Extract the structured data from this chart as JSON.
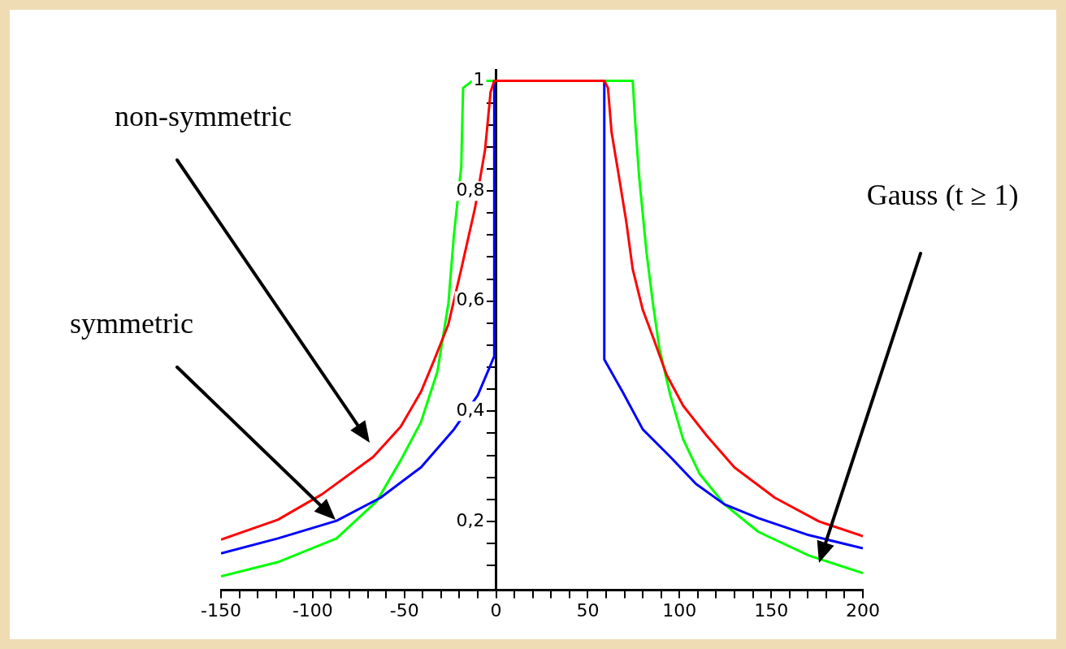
{
  "chart_data": {
    "type": "line",
    "xlim": [
      -150,
      200
    ],
    "ylim": [
      0.075,
      1.02
    ],
    "xticks": [
      -150,
      {
        "value": -140,
        "label": null
      },
      {
        "value": -130,
        "label": null
      },
      {
        "value": -120,
        "label": null
      },
      {
        "value": -110,
        "label": null
      },
      -100,
      {
        "value": -90,
        "label": null
      },
      {
        "value": -80,
        "label": null
      },
      {
        "value": -70,
        "label": null
      },
      {
        "value": -60,
        "label": null
      },
      -50,
      {
        "value": -40,
        "label": null
      },
      {
        "value": -30,
        "label": null
      },
      {
        "value": -20,
        "label": null
      },
      {
        "value": -10,
        "label": null
      },
      0,
      {
        "value": 10,
        "label": null
      },
      {
        "value": 20,
        "label": null
      },
      {
        "value": 30,
        "label": null
      },
      {
        "value": 40,
        "label": null
      },
      50,
      {
        "value": 60,
        "label": null
      },
      {
        "value": 70,
        "label": null
      },
      {
        "value": 80,
        "label": null
      },
      {
        "value": 90,
        "label": null
      },
      100,
      {
        "value": 110,
        "label": null
      },
      {
        "value": 120,
        "label": null
      },
      {
        "value": 130,
        "label": null
      },
      {
        "value": 140,
        "label": null
      },
      150,
      {
        "value": 160,
        "label": null
      },
      {
        "value": 170,
        "label": null
      },
      {
        "value": 180,
        "label": null
      },
      {
        "value": 190,
        "label": null
      },
      200
    ],
    "yticks": [
      {
        "value": 0.12,
        "label": null
      },
      {
        "value": 0.16,
        "label": null
      },
      {
        "value": 0.2,
        "label": "0,2"
      },
      {
        "value": 0.24,
        "label": null
      },
      {
        "value": 0.28,
        "label": null
      },
      {
        "value": 0.32,
        "label": null
      },
      {
        "value": 0.36,
        "label": null
      },
      {
        "value": 0.4,
        "label": "0,4"
      },
      {
        "value": 0.44,
        "label": null
      },
      {
        "value": 0.48,
        "label": null
      },
      {
        "value": 0.52,
        "label": null
      },
      {
        "value": 0.56,
        "label": null
      },
      {
        "value": 0.6,
        "label": "0,6"
      },
      {
        "value": 0.64,
        "label": null
      },
      {
        "value": 0.68,
        "label": null
      },
      {
        "value": 0.72,
        "label": null
      },
      {
        "value": 0.76,
        "label": null
      },
      {
        "value": 0.8,
        "label": "0,8"
      },
      {
        "value": 0.84,
        "label": null
      },
      {
        "value": 0.88,
        "label": null
      },
      {
        "value": 0.92,
        "label": null
      },
      {
        "value": 0.96,
        "label": null
      },
      1
    ],
    "grid": false,
    "legend": false,
    "marker": "none",
    "series": [
      {
        "color": "#ff0000",
        "x": [
          -150,
          -119,
          -95,
          -67,
          -52,
          -41,
          -34,
          -26,
          -19,
          -11.5,
          -6,
          -3,
          -1,
          59,
          61,
          63,
          67,
          71,
          74.5,
          80,
          85.5,
          93,
          102,
          115,
          130,
          152,
          176,
          200
        ],
        "values": [
          0.167,
          0.203,
          0.249,
          0.317,
          0.372,
          0.435,
          0.491,
          0.558,
          0.658,
          0.769,
          0.875,
          0.98,
          1,
          1,
          0.987,
          0.906,
          0.826,
          0.744,
          0.658,
          0.584,
          0.535,
          0.466,
          0.41,
          0.355,
          0.298,
          0.243,
          0.2,
          0.173
        ]
      },
      {
        "color": "#0000ff",
        "x": [
          -150,
          -119,
          -87,
          -63,
          -41,
          -23,
          -10,
          -3,
          -1,
          -1,
          59,
          59,
          69,
          80,
          95,
          109,
          124.5,
          143,
          170.5,
          200
        ],
        "values": [
          0.142,
          0.169,
          0.201,
          0.243,
          0.298,
          0.367,
          0.429,
          0.484,
          0.5,
          1,
          1,
          0.494,
          0.435,
          0.367,
          0.317,
          0.268,
          0.231,
          0.206,
          0.175,
          0.151
        ]
      },
      {
        "color": "#00ff00",
        "x": [
          -150,
          -119,
          -87,
          -65,
          -52,
          -41,
          -32,
          -26,
          -23,
          -19,
          -18,
          -13,
          74.5,
          76,
          78,
          82,
          85.5,
          89,
          95,
          102,
          111,
          124.5,
          143,
          170.5,
          200
        ],
        "values": [
          0.1,
          0.126,
          0.169,
          0.237,
          0.311,
          0.38,
          0.472,
          0.596,
          0.72,
          0.844,
          0.987,
          1,
          1,
          0.918,
          0.826,
          0.689,
          0.596,
          0.515,
          0.429,
          0.349,
          0.286,
          0.231,
          0.181,
          0.138,
          0.106
        ]
      }
    ],
    "annotations": [
      "non-symmetric",
      "symmetric",
      "Gauss (t ≥ 1)"
    ]
  }
}
